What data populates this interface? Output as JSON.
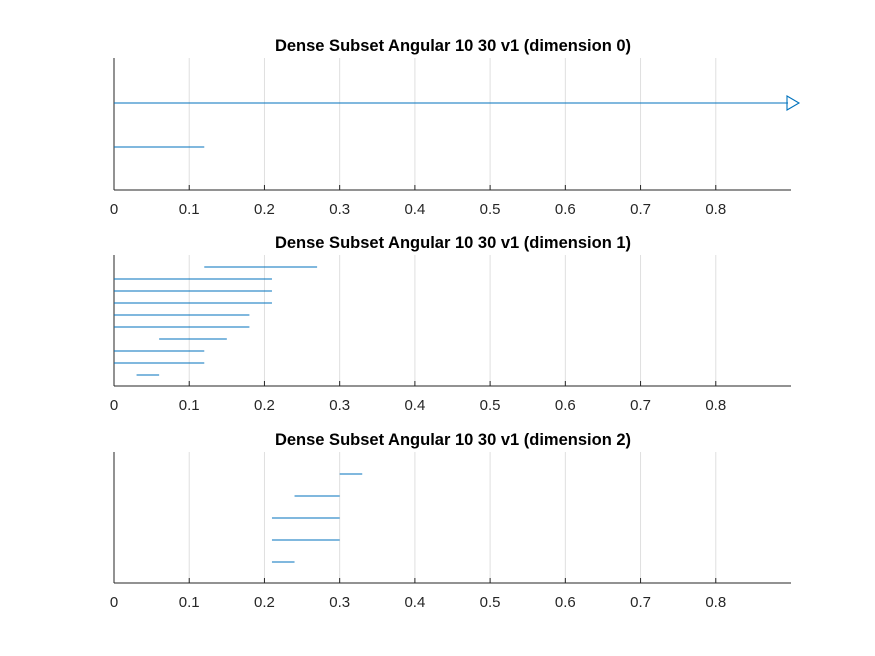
{
  "chart_data": [
    {
      "type": "barcode_intervals",
      "title": "Dense Subset Angular 10 30 v1 (dimension 0)",
      "xlim": [
        0,
        0.9
      ],
      "xticks": [
        "0",
        "0.1",
        "0.2",
        "0.3",
        "0.4",
        "0.5",
        "0.6",
        "0.7",
        "0.8"
      ],
      "grid": "vertical",
      "intervals": [
        {
          "birth": 0,
          "death": null,
          "infinite": true
        },
        {
          "birth": 0,
          "death": 0.12
        }
      ]
    },
    {
      "type": "barcode_intervals",
      "title": "Dense Subset Angular 10 30 v1 (dimension 1)",
      "xlim": [
        0,
        0.9
      ],
      "xticks": [
        "0",
        "0.1",
        "0.2",
        "0.3",
        "0.4",
        "0.5",
        "0.6",
        "0.7",
        "0.8"
      ],
      "grid": "vertical",
      "intervals": [
        {
          "birth": 0.12,
          "death": 0.27
        },
        {
          "birth": 0,
          "death": 0.21
        },
        {
          "birth": 0,
          "death": 0.21
        },
        {
          "birth": 0,
          "death": 0.21
        },
        {
          "birth": 0,
          "death": 0.18
        },
        {
          "birth": 0,
          "death": 0.18
        },
        {
          "birth": 0.06,
          "death": 0.15
        },
        {
          "birth": 0,
          "death": 0.12
        },
        {
          "birth": 0,
          "death": 0.12
        },
        {
          "birth": 0.03,
          "death": 0.06
        }
      ]
    },
    {
      "type": "barcode_intervals",
      "title": "Dense Subset Angular 10 30 v1 (dimension 2)",
      "xlim": [
        0,
        0.9
      ],
      "xticks": [
        "0",
        "0.1",
        "0.2",
        "0.3",
        "0.4",
        "0.5",
        "0.6",
        "0.7",
        "0.8"
      ],
      "grid": "vertical",
      "intervals": [
        {
          "birth": 0.3,
          "death": 0.33
        },
        {
          "birth": 0.24,
          "death": 0.3
        },
        {
          "birth": 0.21,
          "death": 0.3
        },
        {
          "birth": 0.21,
          "death": 0.3
        },
        {
          "birth": 0.21,
          "death": 0.24
        }
      ]
    }
  ],
  "colors": {
    "bar": "#0072BD",
    "grid": "#DFDFDF",
    "axis": "#262626",
    "title": "#000000"
  }
}
